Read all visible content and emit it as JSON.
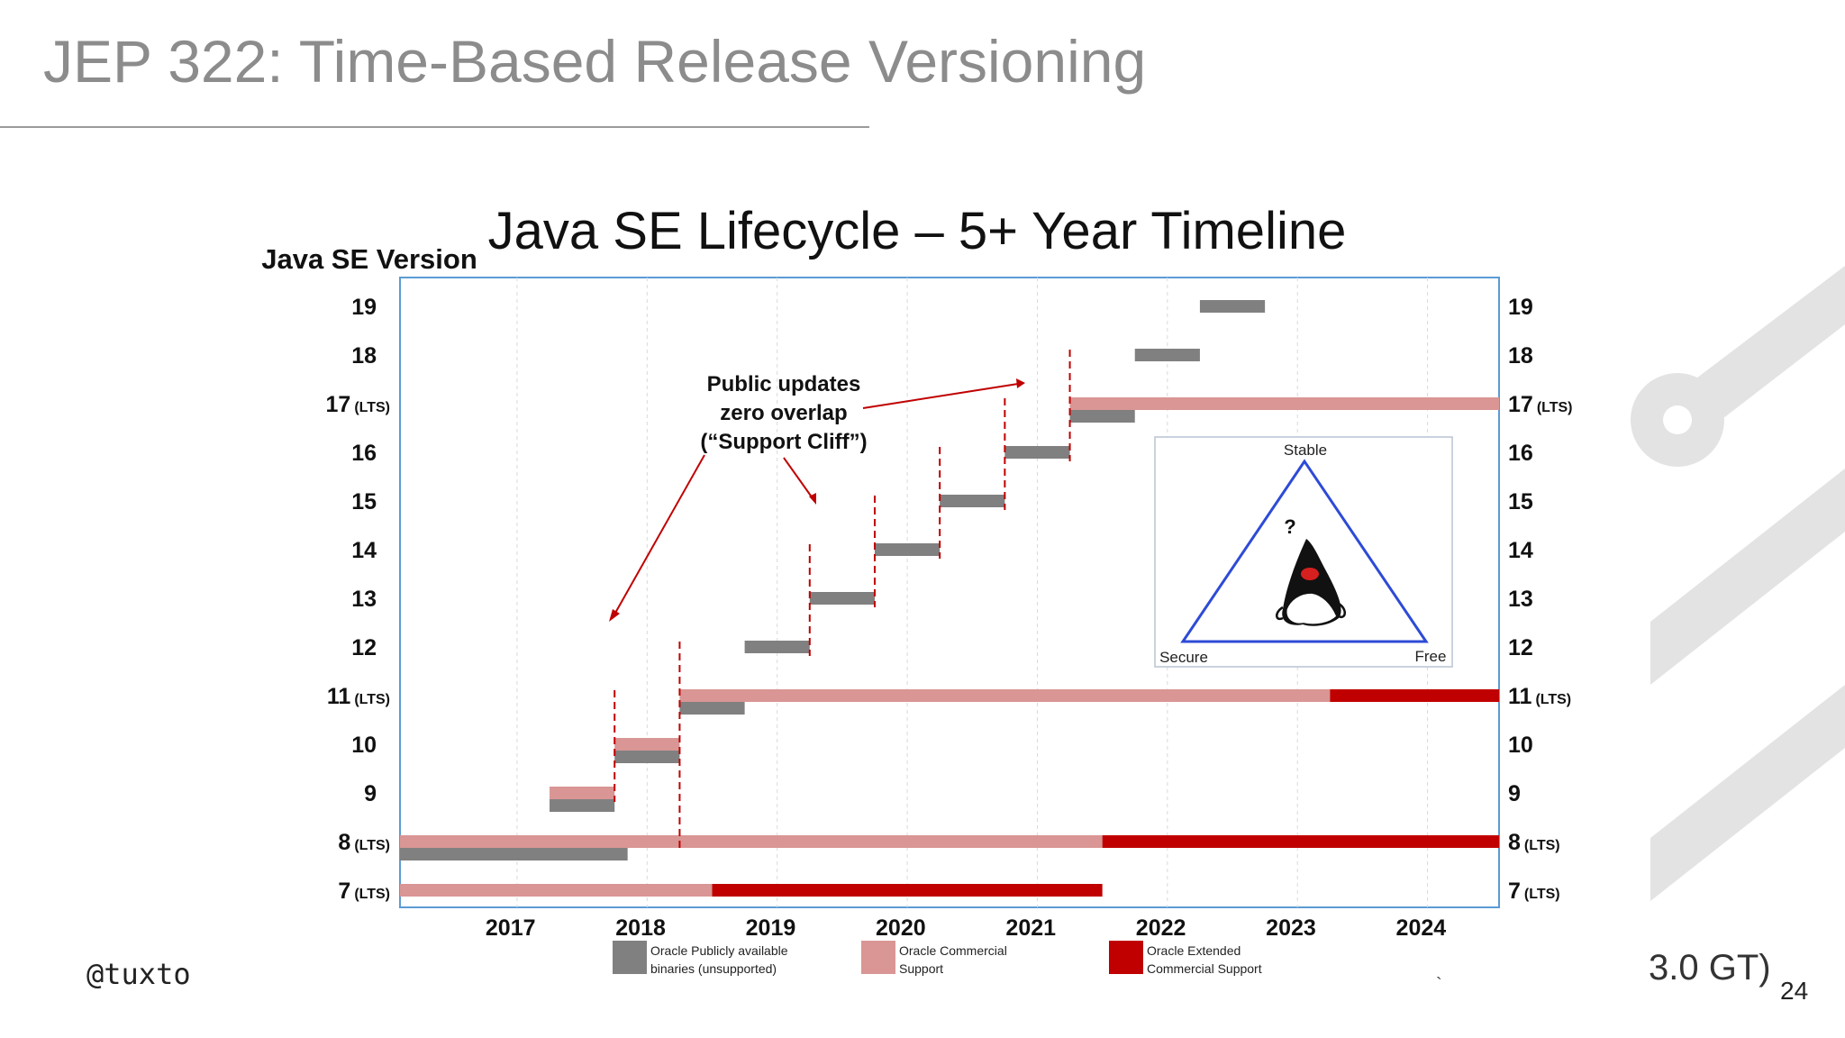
{
  "slide": {
    "title": "JEP 322: Time-Based Release Versioning",
    "handle": "@tuxto",
    "footer_right": "3.0 GT)",
    "page_number": "24",
    "stray_mark": "`"
  },
  "chart_data": {
    "type": "bar",
    "subtype": "gantt",
    "title": "Java SE Lifecycle – 5+ Year Timeline",
    "ylabel": "Java SE Version",
    "x_ticks": [
      "2017",
      "2018",
      "2019",
      "2020",
      "2021",
      "2022",
      "2023",
      "2024"
    ],
    "xlim": [
      2016.6,
      2025.05
    ],
    "versions": [
      {
        "name": "7",
        "tag": "(LTS)"
      },
      {
        "name": "8",
        "tag": "(LTS)"
      },
      {
        "name": "9",
        "tag": ""
      },
      {
        "name": "10",
        "tag": ""
      },
      {
        "name": "11",
        "tag": "(LTS)"
      },
      {
        "name": "12",
        "tag": ""
      },
      {
        "name": "13",
        "tag": ""
      },
      {
        "name": "14",
        "tag": ""
      },
      {
        "name": "15",
        "tag": ""
      },
      {
        "name": "16",
        "tag": ""
      },
      {
        "name": "17",
        "tag": "(LTS)"
      },
      {
        "name": "18",
        "tag": ""
      },
      {
        "name": "19",
        "tag": ""
      }
    ],
    "legend": [
      {
        "key": "public",
        "label_lines": [
          "Oracle Publicly available",
          "binaries (unsupported)"
        ],
        "color": "#808080"
      },
      {
        "key": "commercial",
        "label_lines": [
          "Oracle Commercial",
          "Support"
        ],
        "color": "#d99694"
      },
      {
        "key": "extended",
        "label_lines": [
          "Oracle Extended",
          "Commercial Support"
        ],
        "color": "#c00000"
      }
    ],
    "legend_placement": "bottom",
    "grid": true,
    "segments": [
      {
        "version": "7",
        "type": "commercial",
        "start": 2016.6,
        "end": 2019.0
      },
      {
        "version": "7",
        "type": "extended",
        "start": 2019.0,
        "end": 2022.0
      },
      {
        "version": "8",
        "type": "commercial",
        "start": 2016.6,
        "end": 2022.0
      },
      {
        "version": "8",
        "type": "extended",
        "start": 2022.0,
        "end": 2025.05
      },
      {
        "version": "8",
        "type": "public",
        "start": 2016.6,
        "end": 2018.35
      },
      {
        "version": "9",
        "type": "commercial",
        "start": 2017.75,
        "end": 2018.25
      },
      {
        "version": "9",
        "type": "public",
        "start": 2017.75,
        "end": 2018.25
      },
      {
        "version": "10",
        "type": "commercial",
        "start": 2018.25,
        "end": 2018.75
      },
      {
        "version": "10",
        "type": "public",
        "start": 2018.25,
        "end": 2018.75
      },
      {
        "version": "11",
        "type": "commercial",
        "start": 2018.75,
        "end": 2023.75
      },
      {
        "version": "11",
        "type": "extended",
        "start": 2023.75,
        "end": 2025.05
      },
      {
        "version": "11",
        "type": "public",
        "start": 2018.75,
        "end": 2019.25
      },
      {
        "version": "12",
        "type": "public",
        "start": 2019.25,
        "end": 2019.75
      },
      {
        "version": "13",
        "type": "public",
        "start": 2019.75,
        "end": 2020.25
      },
      {
        "version": "14",
        "type": "public",
        "start": 2020.25,
        "end": 2020.75
      },
      {
        "version": "15",
        "type": "public",
        "start": 2020.75,
        "end": 2021.25
      },
      {
        "version": "16",
        "type": "public",
        "start": 2021.25,
        "end": 2021.75
      },
      {
        "version": "17",
        "type": "commercial",
        "start": 2021.75,
        "end": 2025.05
      },
      {
        "version": "17",
        "type": "public",
        "start": 2021.75,
        "end": 2022.25
      },
      {
        "version": "18",
        "type": "public",
        "start": 2022.25,
        "end": 2022.75
      },
      {
        "version": "19",
        "type": "public",
        "start": 2022.75,
        "end": 2023.25
      }
    ],
    "support_cliffs": [
      {
        "x": 2018.25,
        "from": "9",
        "to": "10"
      },
      {
        "x": 2018.75,
        "from": "8",
        "to": "11"
      },
      {
        "x": 2019.75,
        "from": "12",
        "to": "13"
      },
      {
        "x": 2020.25,
        "from": "13",
        "to": "14"
      },
      {
        "x": 2020.75,
        "from": "14",
        "to": "15"
      },
      {
        "x": 2021.25,
        "from": "15",
        "to": "16"
      },
      {
        "x": 2021.75,
        "from": "16",
        "to": "17"
      }
    ],
    "annotation": {
      "lines": [
        "Public updates",
        "zero overlap",
        "(“Support Cliff”)"
      ]
    },
    "inset": {
      "top": "Stable",
      "left": "Secure",
      "right": "Free",
      "center": "?"
    },
    "colors": {
      "public": "#808080",
      "commercial": "#d99694",
      "extended": "#c00000",
      "cliff": "#c00000",
      "frame": "#5b9bd5",
      "triangle": "#2e4bd6"
    }
  }
}
